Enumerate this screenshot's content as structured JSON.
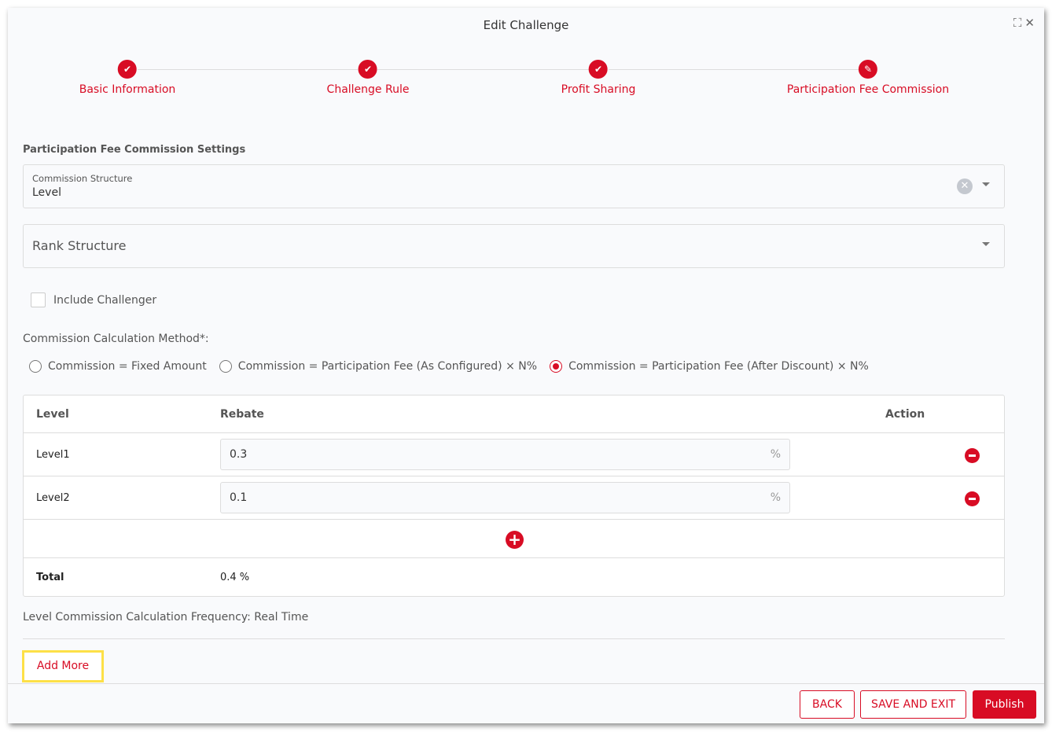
{
  "modal": {
    "title": "Edit Challenge",
    "expand_icon": "expand-icon",
    "close_icon": "close-icon"
  },
  "steps": [
    {
      "label": "Basic Information",
      "status": "done",
      "icon": "check-icon"
    },
    {
      "label": "Challenge Rule",
      "status": "done",
      "icon": "check-icon"
    },
    {
      "label": "Profit Sharing",
      "status": "done",
      "icon": "check-icon"
    },
    {
      "label": "Participation Fee Commission",
      "status": "active",
      "icon": "pencil-icon"
    }
  ],
  "section_title": "Participation Fee Commission Settings",
  "commission_structure": {
    "label": "Commission Structure",
    "value": "Level"
  },
  "rank_structure": {
    "placeholder": "Rank Structure"
  },
  "include_challenger": {
    "label": "Include Challenger",
    "checked": false
  },
  "method": {
    "label": "Commission Calculation Method*:",
    "options": [
      "Commission = Fixed Amount",
      "Commission = Participation Fee (As Configured) × N%",
      "Commission = Participation Fee (After Discount) × N%"
    ],
    "selected": 2
  },
  "table": {
    "headers": {
      "level": "Level",
      "rebate": "Rebate",
      "action": "Action"
    },
    "rows": [
      {
        "level": "Level1",
        "rebate": "0.3",
        "unit": "%"
      },
      {
        "level": "Level2",
        "rebate": "0.1",
        "unit": "%"
      }
    ],
    "total_label": "Total",
    "total_value": "0.4 %"
  },
  "frequency": "Level Commission Calculation Frequency: Real Time",
  "add_more": "Add More",
  "footer": {
    "back": "BACK",
    "save_exit": "SAVE AND EXIT",
    "publish": "Publish"
  },
  "colors": {
    "accent": "#d80c24",
    "highlight": "#fde047"
  }
}
